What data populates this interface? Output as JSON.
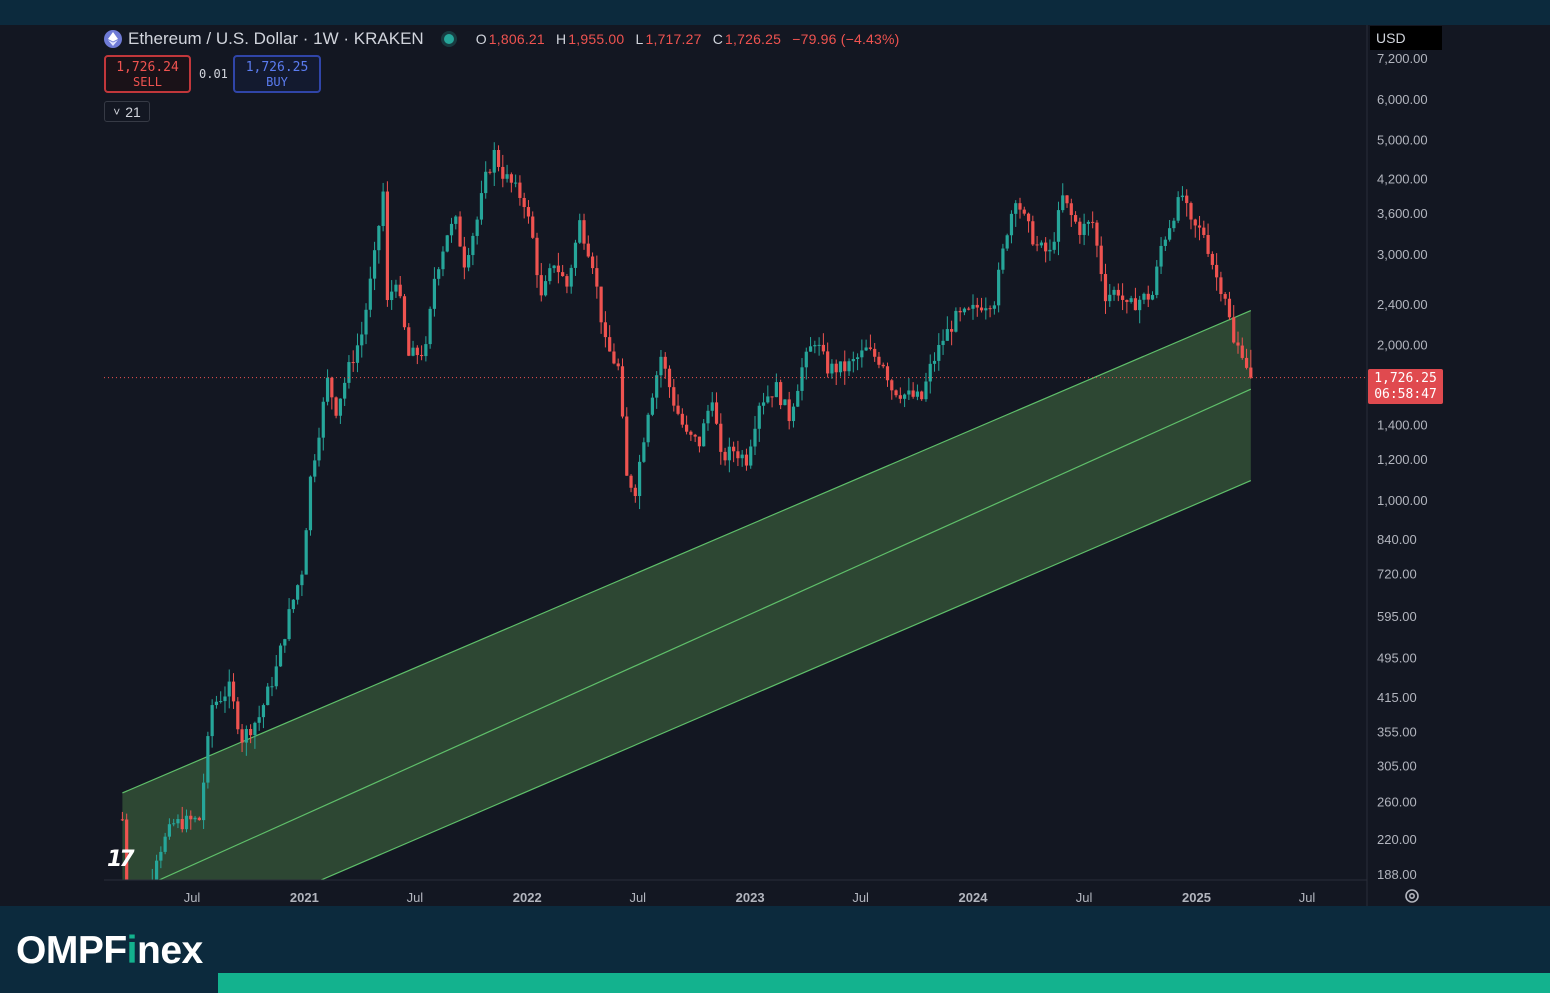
{
  "header": {
    "symbol_title": "Ethereum / U.S. Dollar · 1W · KRAKEN",
    "ohlc": {
      "o_label": "O",
      "o_value": "1,806.21",
      "h_label": "H",
      "h_value": "1,955.00",
      "l_label": "L",
      "l_value": "1,717.27",
      "c_label": "C",
      "c_value": "1,726.25",
      "change": "−79.96 (−4.43%)"
    }
  },
  "trade": {
    "sell_price": "1,726.24",
    "sell_label": "SELL",
    "spread": "0.01",
    "buy_price": "1,726.25",
    "buy_label": "BUY"
  },
  "indicator_toggle": {
    "chevron": "˅",
    "count": "21"
  },
  "currency": "USD",
  "last_price": {
    "value": "1,726.25",
    "countdown": "06:58:47"
  },
  "colors": {
    "background": "#131722",
    "up": "#26a69a",
    "down": "#ef5350",
    "channel_fill": "#2e4a35",
    "channel_line": "#5fbf6a",
    "brand_accent": "#13b28e"
  },
  "icons": [
    "ethereum-icon",
    "status-dot-icon",
    "chevron-down-icon",
    "tradingview-logo-icon",
    "settings-gear-icon"
  ],
  "brand": {
    "part1": "OMPF",
    "part2": "i",
    "part3": "nex"
  },
  "chart_data": {
    "type": "candlestick",
    "y_scale": "log",
    "y_ticks": [
      "7,200.00",
      "6,000.00",
      "5,000.00",
      "4,200.00",
      "3,600.00",
      "3,000.00",
      "2,400.00",
      "2,000.00",
      "1,400.00",
      "1,200.00",
      "1,000.00",
      "840.00",
      "720.00",
      "595.00",
      "495.00",
      "415.00",
      "355.00",
      "305.00",
      "260.00",
      "220.00",
      "188.00"
    ],
    "y_tick_values": [
      7200,
      6000,
      5000,
      4200,
      3600,
      3000,
      2400,
      2000,
      1400,
      1200,
      1000,
      840,
      720,
      595,
      495,
      415,
      355,
      305,
      260,
      220,
      188
    ],
    "x_ticks": [
      "Jul",
      "2021",
      "Jul",
      "2022",
      "Jul",
      "2023",
      "Jul",
      "2024",
      "Jul",
      "2025",
      "Jul"
    ],
    "x_tick_dates": [
      "2020-07-01",
      "2021-01-01",
      "2021-07-01",
      "2022-01-01",
      "2022-07-01",
      "2023-01-01",
      "2023-07-01",
      "2024-01-01",
      "2024-07-01",
      "2025-01-01",
      "2025-07-01"
    ],
    "x_range": [
      "2020-03-09",
      "2025-12-01"
    ],
    "y_range": [
      180,
      7300
    ],
    "last_price": 1726.25,
    "channel": {
      "dates": [
        "2020-03-09",
        "2025-03-31"
      ],
      "upper": [
        270,
        2330
      ],
      "middle": [
        170,
        1640
      ],
      "lower": [
        125,
        1090
      ]
    },
    "close_path": [
      [
        "2020-03-09",
        240
      ],
      [
        "2020-03-23",
        130
      ],
      [
        "2020-04-13",
        158
      ],
      [
        "2020-05-04",
        205
      ],
      [
        "2020-06-01",
        235
      ],
      [
        "2020-07-13",
        240
      ],
      [
        "2020-08-03",
        400
      ],
      [
        "2020-08-31",
        430
      ],
      [
        "2020-09-21",
        345
      ],
      [
        "2020-10-19",
        380
      ],
      [
        "2020-11-16",
        470
      ],
      [
        "2020-12-07",
        600
      ],
      [
        "2020-12-28",
        730
      ],
      [
        "2021-01-11",
        1100
      ],
      [
        "2021-02-08",
        1700
      ],
      [
        "2021-02-22",
        1500
      ],
      [
        "2021-03-15",
        1800
      ],
      [
        "2021-04-05",
        2100
      ],
      [
        "2021-04-26",
        2950
      ],
      [
        "2021-05-10",
        3950
      ],
      [
        "2021-05-17",
        2400
      ],
      [
        "2021-05-31",
        2700
      ],
      [
        "2021-06-21",
        1900
      ],
      [
        "2021-07-19",
        1950
      ],
      [
        "2021-08-02",
        2700
      ],
      [
        "2021-08-23",
        3300
      ],
      [
        "2021-09-06",
        3450
      ],
      [
        "2021-09-20",
        2900
      ],
      [
        "2021-10-11",
        3500
      ],
      [
        "2021-10-25",
        4200
      ],
      [
        "2021-11-08",
        4700
      ],
      [
        "2021-11-22",
        4300
      ],
      [
        "2021-12-06",
        4100
      ],
      [
        "2021-12-27",
        3800
      ],
      [
        "2022-01-10",
        3200
      ],
      [
        "2022-01-24",
        2450
      ],
      [
        "2022-02-14",
        2900
      ],
      [
        "2022-03-07",
        2600
      ],
      [
        "2022-03-28",
        3450
      ],
      [
        "2022-04-18",
        2900
      ],
      [
        "2022-05-09",
        2000
      ],
      [
        "2022-05-30",
        1800
      ],
      [
        "2022-06-13",
        1100
      ],
      [
        "2022-06-27",
        1050
      ],
      [
        "2022-07-18",
        1500
      ],
      [
        "2022-08-08",
        1900
      ],
      [
        "2022-08-29",
        1550
      ],
      [
        "2022-09-19",
        1330
      ],
      [
        "2022-10-10",
        1290
      ],
      [
        "2022-10-31",
        1600
      ],
      [
        "2022-11-14",
        1200
      ],
      [
        "2022-12-05",
        1250
      ],
      [
        "2022-12-26",
        1200
      ],
      [
        "2023-01-16",
        1550
      ],
      [
        "2023-02-13",
        1650
      ],
      [
        "2023-03-06",
        1450
      ],
      [
        "2023-03-27",
        1800
      ],
      [
        "2023-04-17",
        2050
      ],
      [
        "2023-05-08",
        1800
      ],
      [
        "2023-06-05",
        1800
      ],
      [
        "2023-06-19",
        1850
      ],
      [
        "2023-07-10",
        1950
      ],
      [
        "2023-08-07",
        1850
      ],
      [
        "2023-08-21",
        1650
      ],
      [
        "2023-09-11",
        1600
      ],
      [
        "2023-10-09",
        1570
      ],
      [
        "2023-10-23",
        1800
      ],
      [
        "2023-11-13",
        2050
      ],
      [
        "2023-12-04",
        2250
      ],
      [
        "2023-12-25",
        2300
      ],
      [
        "2024-01-15",
        2400
      ],
      [
        "2024-02-05",
        2450
      ],
      [
        "2024-02-26",
        3350
      ],
      [
        "2024-03-11",
        3900
      ],
      [
        "2024-03-25",
        3500
      ],
      [
        "2024-04-15",
        3100
      ],
      [
        "2024-05-06",
        3000
      ],
      [
        "2024-05-27",
        3850
      ],
      [
        "2024-06-10",
        3550
      ],
      [
        "2024-06-24",
        3350
      ],
      [
        "2024-07-15",
        3450
      ],
      [
        "2024-08-05",
        2500
      ],
      [
        "2024-08-26",
        2550
      ],
      [
        "2024-09-09",
        2350
      ],
      [
        "2024-09-30",
        2450
      ],
      [
        "2024-10-21",
        2500
      ],
      [
        "2024-11-04",
        3100
      ],
      [
        "2024-11-25",
        3600
      ],
      [
        "2024-12-09",
        3900
      ],
      [
        "2024-12-23",
        3400
      ],
      [
        "2025-01-13",
        3300
      ],
      [
        "2025-02-03",
        2700
      ],
      [
        "2025-02-17",
        2500
      ],
      [
        "2025-03-03",
        2000
      ],
      [
        "2025-03-17",
        1950
      ],
      [
        "2025-03-31",
        1726
      ]
    ]
  }
}
